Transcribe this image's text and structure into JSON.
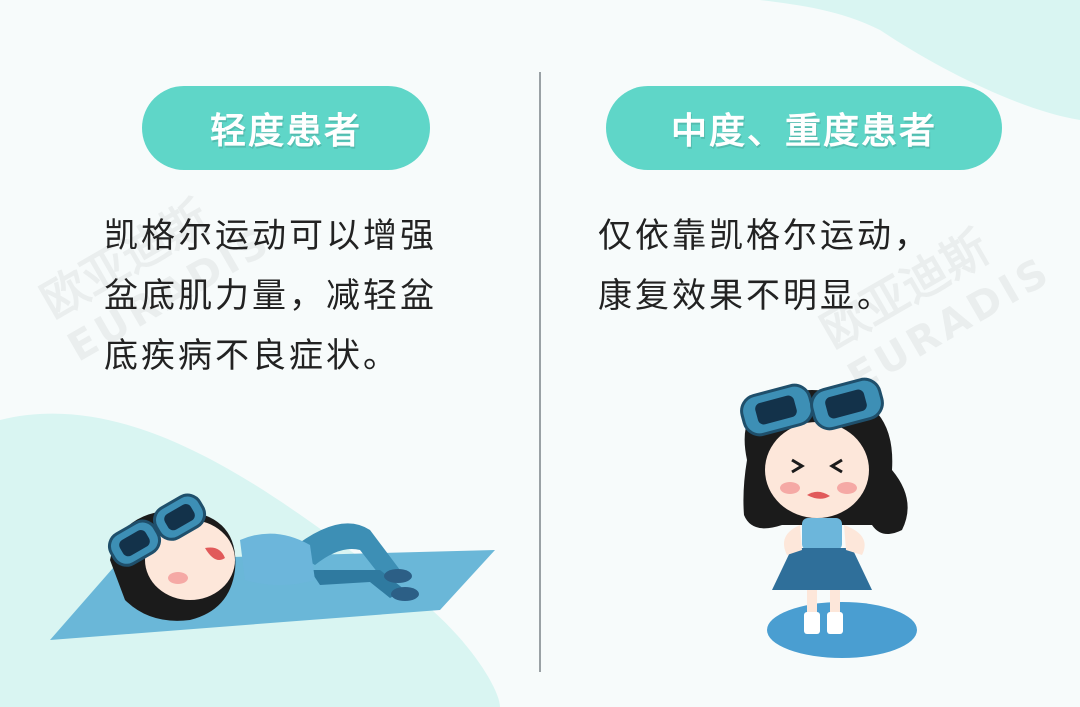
{
  "left": {
    "heading": "轻度患者",
    "lines": [
      "凯格尔运动可以增强",
      "盆底肌力量，减轻盆",
      "底疾病不良症状。"
    ]
  },
  "right": {
    "heading": "中度、重度患者",
    "lines": [
      "仅依靠凯格尔运动，",
      "康复效果不明显。"
    ]
  },
  "watermark": {
    "cn": "欧亚迪斯",
    "en": "EURADIS"
  },
  "colors": {
    "accent": "#5fd6c8",
    "mint_blob": "#d9f5f2",
    "mat": "#6ab7d8",
    "character_blue": "#3d8fb5",
    "hair": "#1b1b1b"
  }
}
